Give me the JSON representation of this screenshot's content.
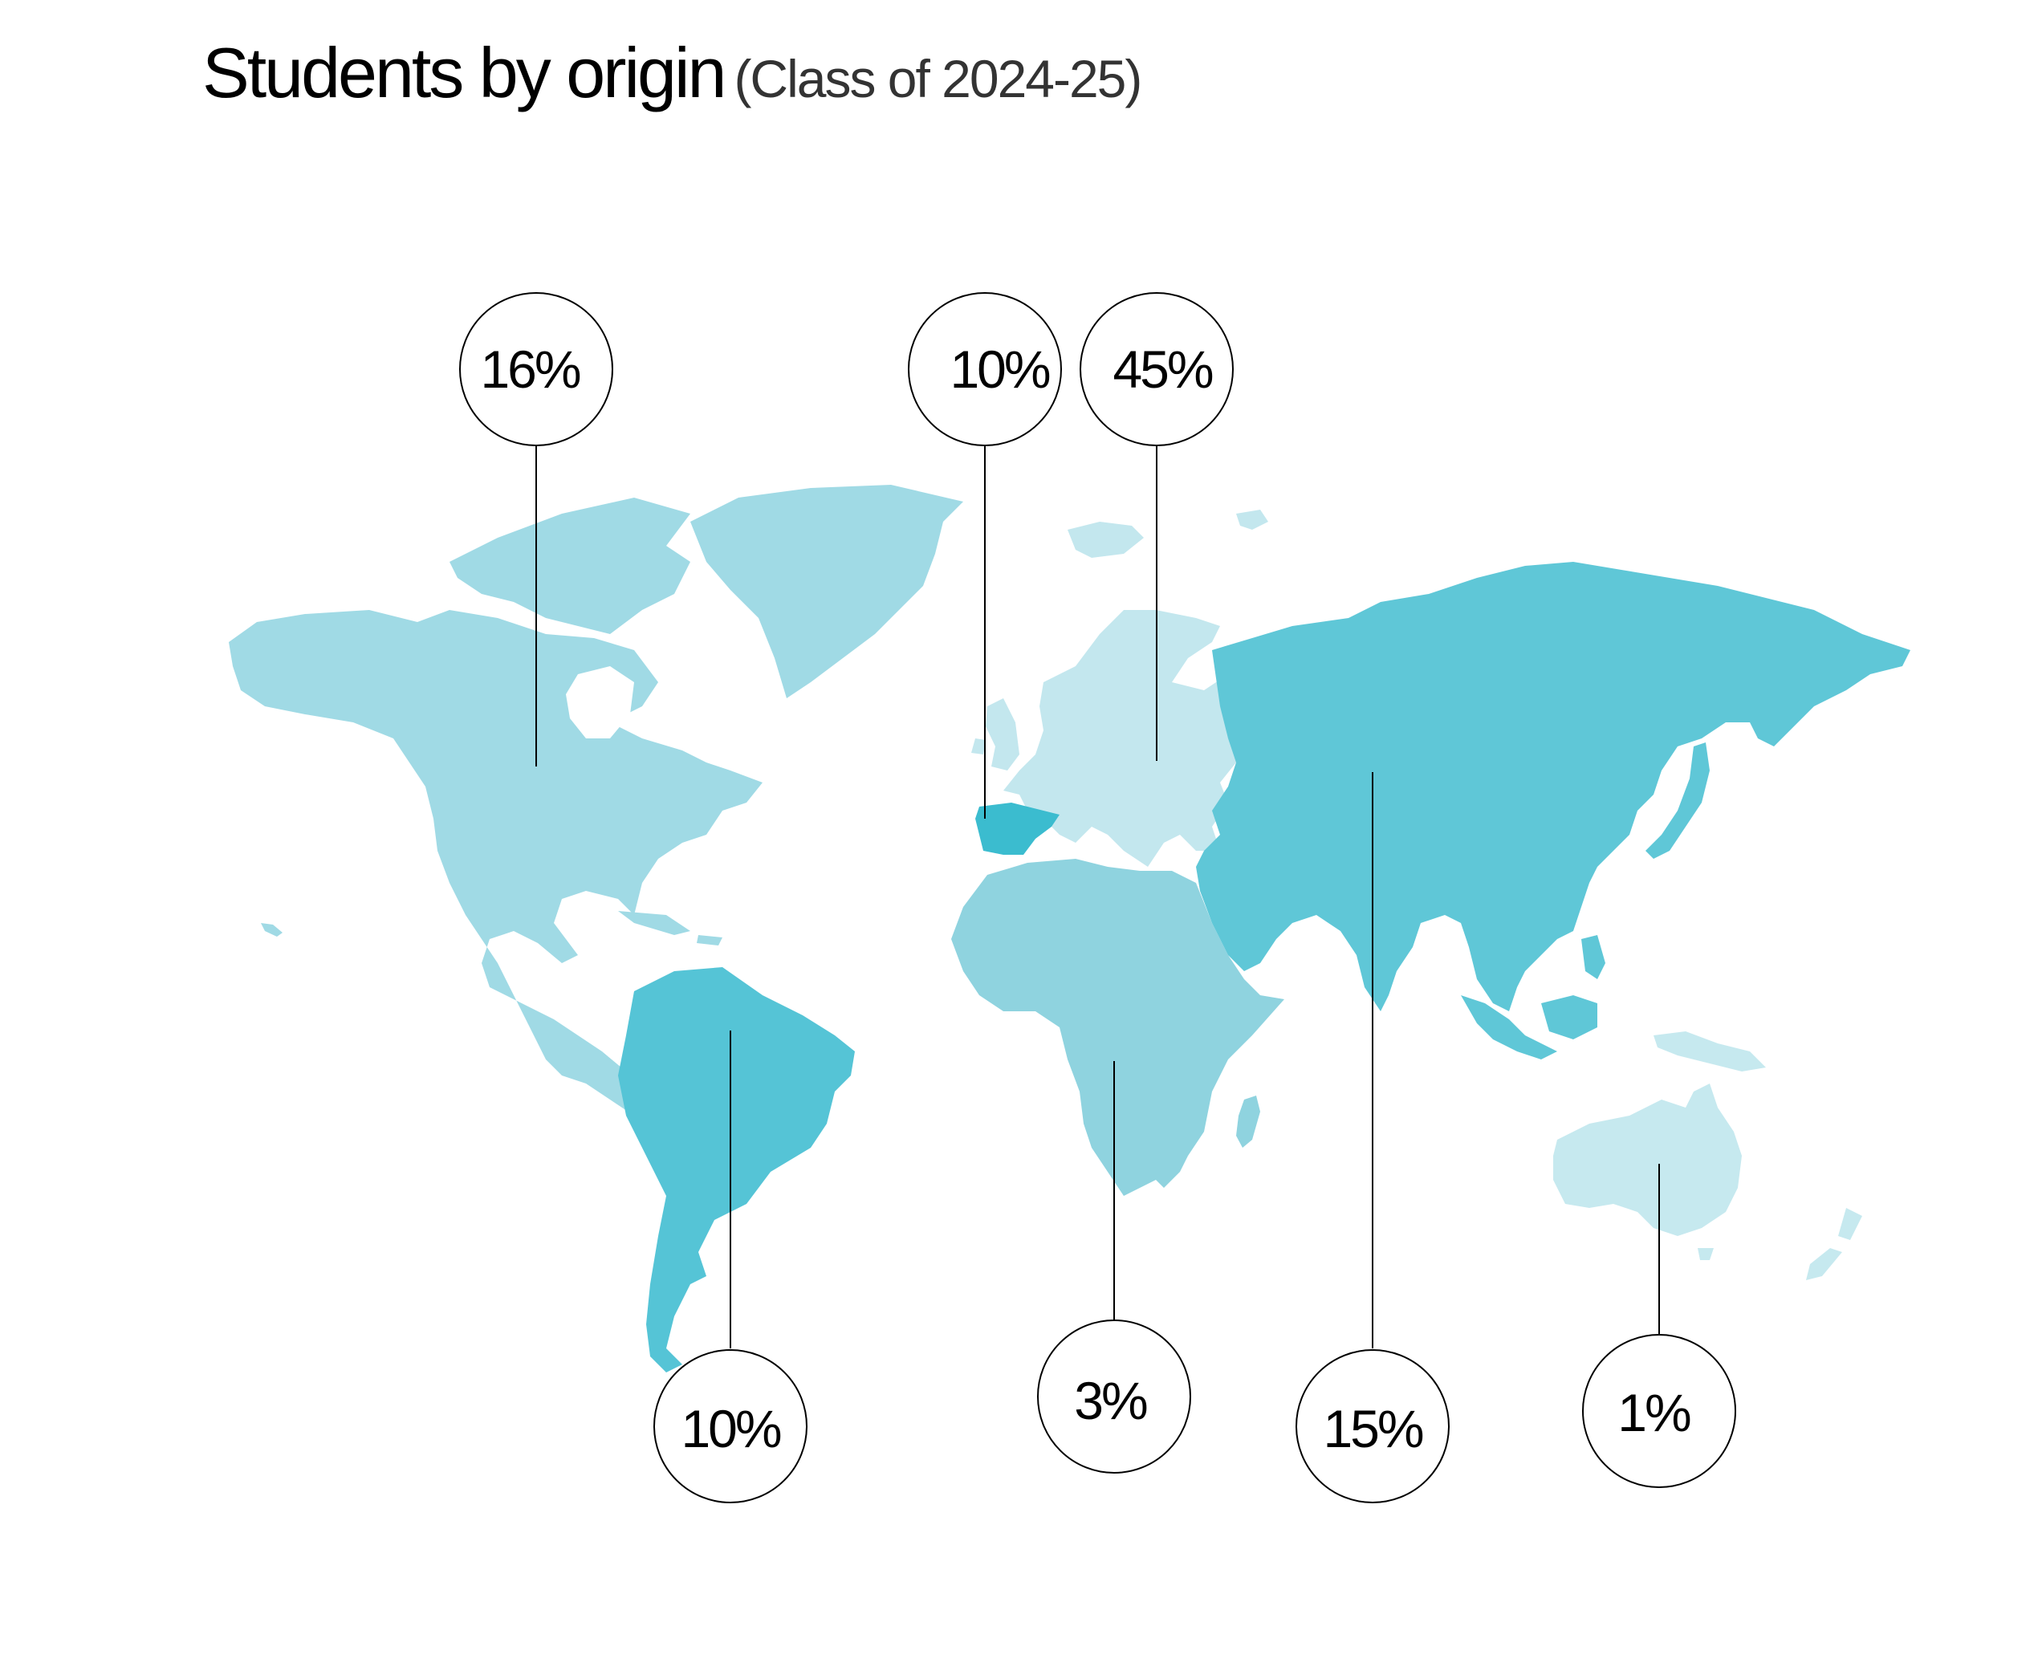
{
  "title": "Students by origin",
  "subtitle": "(Class of 2024-25)",
  "colors": {
    "north_america": "#a0dae5",
    "south_america": "#55c4d6",
    "spain": "#3bbccf",
    "europe": "#c3e7ee",
    "africa": "#8fd3df",
    "asia": "#5fc7d7",
    "oceania": "#c6e9ef",
    "leader": "#000000",
    "bubble_stroke": "#000000"
  },
  "regions": [
    {
      "key": "north_america",
      "label": "16%",
      "value": 16
    },
    {
      "key": "spain",
      "label": "10%",
      "value": 10
    },
    {
      "key": "europe",
      "label": "45%",
      "value": 45
    },
    {
      "key": "south_america",
      "label": "10%",
      "value": 10
    },
    {
      "key": "africa",
      "label": "3%",
      "value": 3
    },
    {
      "key": "asia",
      "label": "15%",
      "value": 15
    },
    {
      "key": "oceania",
      "label": "1%",
      "value": 1
    }
  ]
}
